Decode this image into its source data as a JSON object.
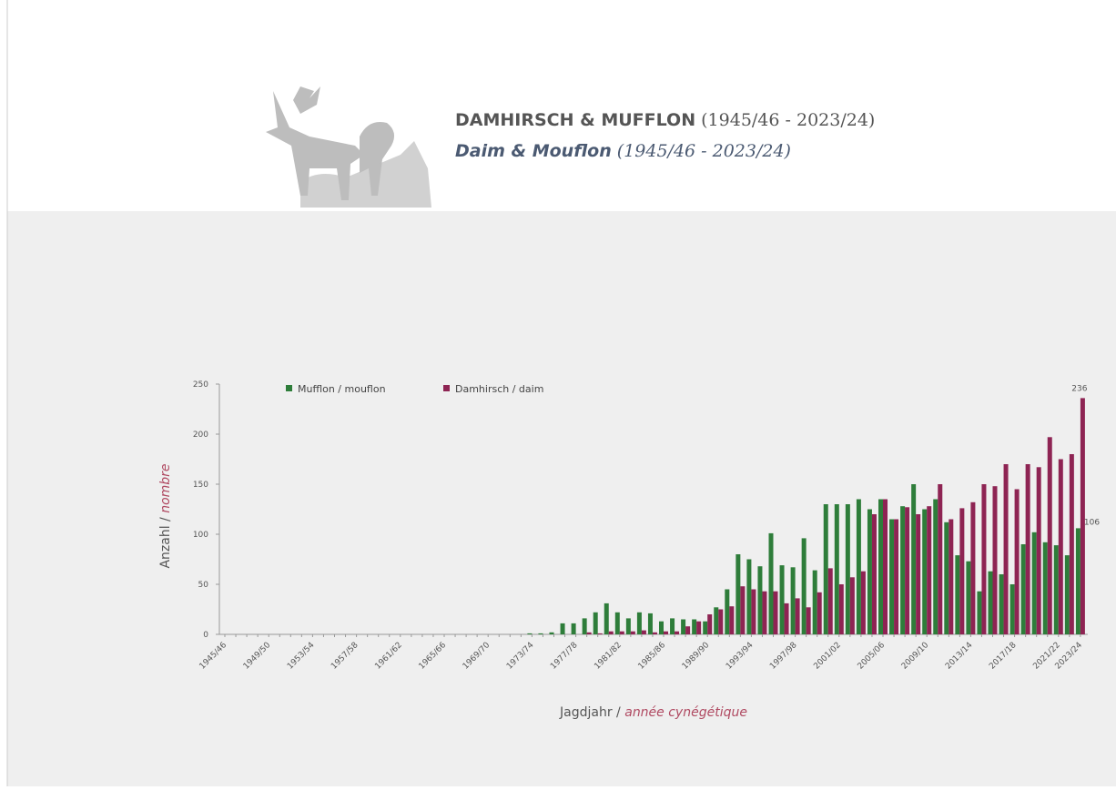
{
  "header": {
    "title_de": "DAMHIRSCH & MUFFLON",
    "period_de": "(1945/46 - 2023/24)",
    "title_fr": "Daim & Mouflon",
    "period_fr": "(1945/46 - 2023/24)"
  },
  "chart_data": {
    "type": "bar",
    "categories": [
      "1945/46",
      null,
      null,
      null,
      "1949/50",
      null,
      null,
      null,
      "1953/54",
      null,
      null,
      null,
      "1957/58",
      null,
      null,
      null,
      "1961/62",
      null,
      null,
      null,
      "1965/66",
      null,
      null,
      null,
      "1969/70",
      null,
      null,
      null,
      "1973/74",
      null,
      null,
      null,
      "1977/78",
      null,
      null,
      null,
      "1981/82",
      null,
      null,
      null,
      "1985/86",
      null,
      null,
      null,
      "1989/90",
      null,
      null,
      null,
      "1993/94",
      null,
      null,
      null,
      "1997/98",
      null,
      null,
      null,
      "2001/02",
      null,
      null,
      null,
      "2005/06",
      null,
      null,
      null,
      "2009/10",
      null,
      null,
      null,
      "2013/14",
      null,
      null,
      null,
      "2017/18",
      null,
      null,
      null,
      "2021/22",
      null,
      "2023/24"
    ],
    "series": [
      {
        "name": "Mufflon / mouflon",
        "color": "#2e7d3a",
        "values": [
          0,
          0,
          0,
          0,
          0,
          0,
          0,
          0,
          0,
          0,
          0,
          0,
          0,
          0,
          0,
          0,
          0,
          0,
          0,
          0,
          0,
          0,
          0,
          0,
          0,
          0,
          0,
          0,
          1,
          1,
          2,
          11,
          11,
          16,
          22,
          31,
          22,
          16,
          22,
          21,
          13,
          16,
          15,
          15,
          13,
          27,
          45,
          80,
          75,
          68,
          101,
          69,
          67,
          96,
          64,
          130,
          130,
          130,
          135,
          125,
          135,
          115,
          128,
          150,
          125,
          135,
          112,
          79,
          73,
          43,
          63,
          60,
          50,
          90,
          102,
          92,
          89,
          79,
          106
        ]
      },
      {
        "name": "Damhirsch / daim",
        "color": "#8e2453",
        "values": [
          0,
          0,
          0,
          0,
          0,
          0,
          0,
          0,
          0,
          0,
          0,
          0,
          0,
          0,
          0,
          0,
          0,
          0,
          0,
          0,
          0,
          0,
          0,
          0,
          0,
          0,
          0,
          0,
          0,
          0,
          0,
          0,
          0,
          2,
          1,
          3,
          3,
          3,
          4,
          2,
          3,
          3,
          8,
          13,
          20,
          25,
          28,
          48,
          45,
          43,
          43,
          31,
          36,
          27,
          42,
          66,
          50,
          57,
          63,
          120,
          135,
          115,
          127,
          120,
          128,
          150,
          115,
          126,
          132,
          150,
          148,
          170,
          145,
          170,
          167,
          197,
          175,
          180,
          236
        ]
      }
    ],
    "ylim": [
      0,
      250
    ],
    "yticks": [
      0,
      50,
      100,
      150,
      200,
      250
    ],
    "y_label": {
      "de": "Anzahl /",
      "fr": "nombre"
    },
    "x_label": {
      "de": "Jagdjahr /",
      "fr": "année cynégétique"
    }
  }
}
